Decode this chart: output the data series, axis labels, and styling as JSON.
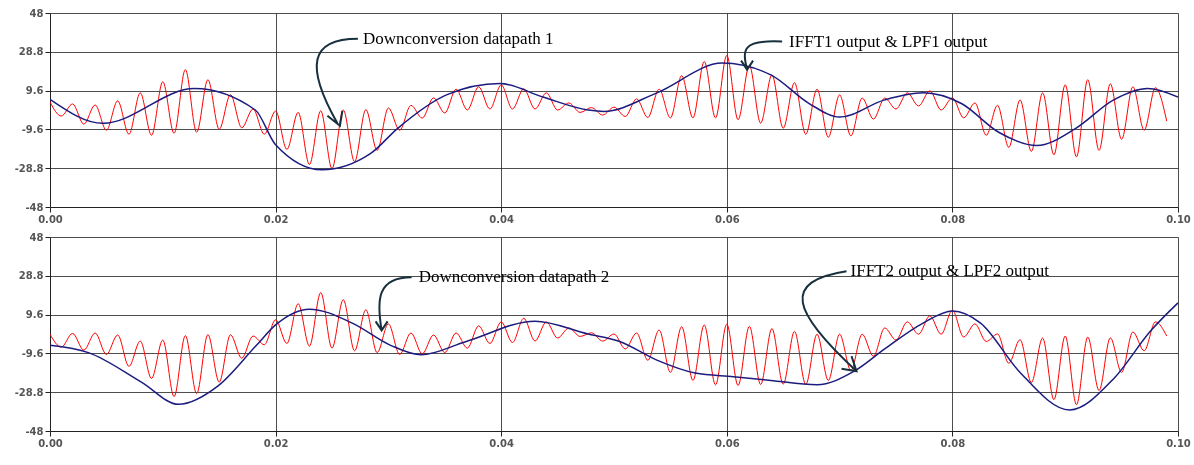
{
  "chart_data": [
    {
      "type": "line",
      "xlim": [
        0,
        0.1
      ],
      "ylim": [
        -48,
        48
      ],
      "xticks": [
        {
          "value": 0,
          "label": "0.00"
        },
        {
          "value": 0.02,
          "label": "0.02"
        },
        {
          "value": 0.04,
          "label": "0.04"
        },
        {
          "value": 0.06,
          "label": "0.06"
        },
        {
          "value": 0.08,
          "label": "0.08"
        },
        {
          "value": 0.1,
          "label": "0.10"
        }
      ],
      "yticks": [
        -48,
        -28.8,
        -9.6,
        9.6,
        28.8,
        48
      ],
      "grid": true,
      "annotations": [
        {
          "text": "Downconversion datapath 1",
          "x": 0.0257,
          "y": -7.8
        },
        {
          "text": "IFFT1 output & LPF1 output",
          "x": 0.0618,
          "y": 20
        }
      ],
      "x": [
        0,
        0.001,
        0.002,
        0.003,
        0.004,
        0.005,
        0.006,
        0.007,
        0.008,
        0.009,
        0.01,
        0.011,
        0.012,
        0.013,
        0.014,
        0.015,
        0.016,
        0.017,
        0.018,
        0.019,
        0.02,
        0.021,
        0.022,
        0.023,
        0.024,
        0.025,
        0.026,
        0.027,
        0.028,
        0.029,
        0.03,
        0.031,
        0.032,
        0.033,
        0.034,
        0.035,
        0.036,
        0.037,
        0.038,
        0.039,
        0.04,
        0.041,
        0.042,
        0.043,
        0.044,
        0.045,
        0.046,
        0.047,
        0.048,
        0.049,
        0.05,
        0.051,
        0.052,
        0.053,
        0.054,
        0.055,
        0.056,
        0.057,
        0.058,
        0.059,
        0.06,
        0.061,
        0.062,
        0.063,
        0.064,
        0.065,
        0.066,
        0.067,
        0.068,
        0.069,
        0.07,
        0.071,
        0.072,
        0.073,
        0.074,
        0.075,
        0.076,
        0.077,
        0.078,
        0.079,
        0.08,
        0.081,
        0.082,
        0.083,
        0.084,
        0.085,
        0.086,
        0.087,
        0.088,
        0.089,
        0.09,
        0.091,
        0.092,
        0.093,
        0.094,
        0.095,
        0.096,
        0.097,
        0.098,
        0.099
      ],
      "series": [
        {
          "color": "#ff0000",
          "values": [
            4,
            -3,
            3,
            -7,
            2.5,
            -10,
            4.5,
            -12,
            8.5,
            -12.5,
            14,
            -11.5,
            20,
            -11,
            15,
            -9.5,
            7.6,
            -8.8,
            0.5,
            -12,
            -0.5,
            -19.5,
            -1.2,
            -27,
            -0.4,
            -29,
            0,
            -25.5,
            0.2,
            -20,
            1,
            -10,
            2.3,
            -4,
            6,
            -1.5,
            10.3,
            0,
            11.5,
            0.5,
            12.4,
            0.5,
            10.5,
            0.5,
            8.5,
            0,
            3.5,
            -1.2,
            1.2,
            -2.5,
            1.4,
            -3.2,
            5.5,
            -3.7,
            10.3,
            -3.9,
            17,
            -3.9,
            24,
            -3.9,
            27,
            -4.8,
            22,
            -6.5,
            17.4,
            -9,
            13.5,
            -12,
            10.3,
            -13.5,
            7.5,
            -12.8,
            5.9,
            -4.5,
            5.9,
            0.5,
            8.5,
            2,
            9.5,
            0,
            6,
            -3.9,
            3.5,
            -12.5,
            2.3,
            -18.5,
            5,
            -20.5,
            8.5,
            -22.2,
            12.5,
            -23.2,
            15,
            -20,
            13,
            -14.5,
            11.5,
            -10,
            11,
            -5.5
          ]
        },
        {
          "color": "#1c1c80",
          "x": [
            0,
            0.0047,
            0.0128,
            0.0182,
            0.02,
            0.0241,
            0.0284,
            0.0308,
            0.0352,
            0.0399,
            0.0437,
            0.0477,
            0.0491,
            0.0538,
            0.0596,
            0.0639,
            0.0673,
            0.07,
            0.074,
            0.0774,
            0.0808,
            0.0841,
            0.0875,
            0.0909,
            0.0943,
            0.0973,
            0.1
          ],
          "values": [
            5.3,
            -6.6,
            10.6,
            0,
            -17.2,
            -29.6,
            -21.6,
            -9.2,
            7.6,
            13.1,
            6.4,
            0,
            -0.7,
            8.5,
            23.2,
            17.4,
            3.2,
            -3.5,
            5,
            8.5,
            3.2,
            -11,
            -17.6,
            -9.2,
            5,
            10.6,
            6.4
          ]
        }
      ]
    },
    {
      "type": "line",
      "xlim": [
        0,
        0.1
      ],
      "ylim": [
        -48,
        48
      ],
      "xticks": [
        {
          "value": 0,
          "label": "0.00"
        },
        {
          "value": 0.02,
          "label": "0.02"
        },
        {
          "value": 0.04,
          "label": "0.04"
        },
        {
          "value": 0.06,
          "label": "0.06"
        },
        {
          "value": 0.08,
          "label": "0.08"
        },
        {
          "value": 0.1,
          "label": "0.10"
        }
      ],
      "yticks": [
        -48,
        -28.8,
        -9.6,
        9.6,
        28.8,
        48
      ],
      "grid": true,
      "annotations": [
        {
          "text": "Downconversion datapath 2",
          "x": 0.0294,
          "y": 1.8
        },
        {
          "text": "IFFT2 output & LPF2 output",
          "x": 0.0715,
          "y": -18.4
        }
      ],
      "x": [
        0,
        0.001,
        0.002,
        0.003,
        0.004,
        0.005,
        0.006,
        0.007,
        0.008,
        0.009,
        0.01,
        0.011,
        0.012,
        0.013,
        0.014,
        0.015,
        0.016,
        0.017,
        0.018,
        0.019,
        0.02,
        0.021,
        0.022,
        0.023,
        0.024,
        0.025,
        0.026,
        0.027,
        0.028,
        0.029,
        0.03,
        0.031,
        0.032,
        0.033,
        0.034,
        0.035,
        0.036,
        0.037,
        0.038,
        0.039,
        0.04,
        0.041,
        0.042,
        0.043,
        0.044,
        0.045,
        0.046,
        0.047,
        0.048,
        0.049,
        0.05,
        0.051,
        0.052,
        0.053,
        0.054,
        0.055,
        0.056,
        0.057,
        0.058,
        0.059,
        0.06,
        0.061,
        0.062,
        0.063,
        0.064,
        0.065,
        0.066,
        0.067,
        0.068,
        0.069,
        0.07,
        0.071,
        0.072,
        0.073,
        0.074,
        0.075,
        0.076,
        0.077,
        0.078,
        0.079,
        0.08,
        0.081,
        0.082,
        0.083,
        0.084,
        0.085,
        0.086,
        0.087,
        0.088,
        0.089,
        0.09,
        0.091,
        0.092,
        0.093,
        0.094,
        0.095,
        0.096,
        0.097,
        0.098,
        0.099
      ],
      "series": [
        {
          "color": "#ff0000",
          "values": [
            -0.1,
            -6.5,
            0.3,
            -8,
            0.5,
            -10.1,
            -0.5,
            -16,
            -3.5,
            -22,
            -3,
            -31,
            -0.8,
            -29.5,
            -0.3,
            -23.8,
            -0.4,
            -12,
            -1,
            -5.3,
            7,
            -4.7,
            15,
            -6,
            20.5,
            -7,
            17,
            -8.3,
            12,
            -9.2,
            5,
            -10.1,
            0.5,
            -9.8,
            -0.5,
            -9.2,
            0.5,
            -7,
            4,
            -4.7,
            6,
            -4.2,
            7.8,
            -3.5,
            6,
            -2,
            3,
            -1.2,
            0.6,
            -3.5,
            0,
            -7.4,
            0.5,
            -13,
            2,
            -19,
            3.6,
            -23,
            4.5,
            -25.2,
            4.9,
            -25.5,
            3.8,
            -25,
            2.7,
            -24.8,
            1.3,
            -25,
            -0.1,
            -23,
            -0.1,
            -18,
            -0.1,
            -11,
            3,
            -3,
            6,
            -0.1,
            9,
            -0.1,
            11.8,
            -1.5,
            5,
            -3.7,
            0,
            -14.5,
            -2.8,
            -24,
            -2,
            -32.5,
            -1,
            -35,
            -1.5,
            -28,
            -1.9,
            -19,
            1,
            -8.3,
            6,
            -1
          ]
        },
        {
          "color": "#1c1c80",
          "x": [
            0,
            0.0034,
            0.0081,
            0.0114,
            0.0149,
            0.0183,
            0.02,
            0.023,
            0.0268,
            0.0302,
            0.0329,
            0.0369,
            0.043,
            0.0477,
            0.0505,
            0.0538,
            0.0572,
            0.0606,
            0.0639,
            0.068,
            0.0713,
            0.074,
            0.0774,
            0.08,
            0.0825,
            0.0859,
            0.0904,
            0.0943,
            0.0976,
            0.1
          ],
          "values": [
            -5.6,
            -9.2,
            -23.8,
            -34.8,
            -25.7,
            -5.6,
            4.5,
            12.3,
            5.4,
            -5.6,
            -10.3,
            -3.7,
            6.3,
            0,
            -3.7,
            -12.9,
            -19.3,
            -21.1,
            -23,
            -25.1,
            -18.4,
            -7.4,
            5.4,
            11.4,
            5.4,
            -18.4,
            -37.6,
            -22.1,
            1.7,
            15.4
          ]
        }
      ]
    }
  ]
}
